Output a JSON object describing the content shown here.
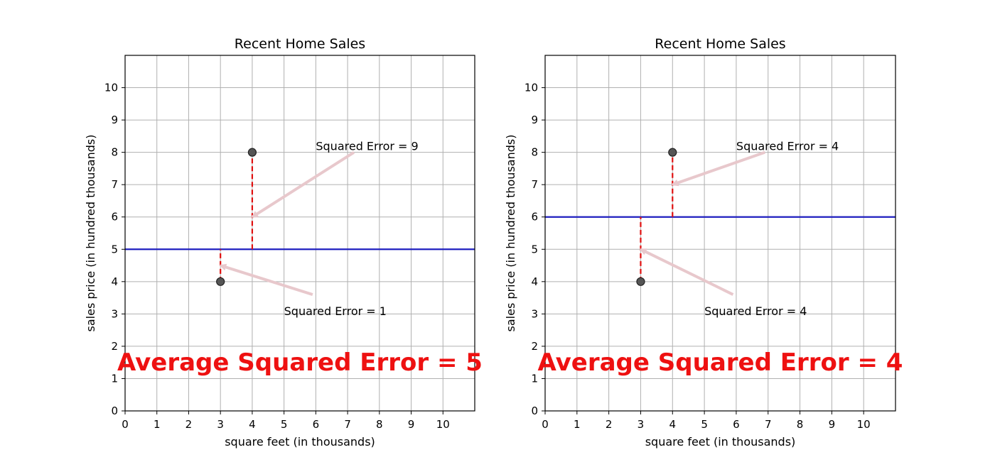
{
  "chart_data": [
    {
      "type": "scatter",
      "title": "Recent Home Sales",
      "xlabel": "square feet (in thousands)",
      "ylabel": "sales price (in hundred thousands)",
      "xlim": [
        0,
        11
      ],
      "ylim": [
        0,
        11
      ],
      "xticks": [
        0,
        1,
        2,
        3,
        4,
        5,
        6,
        7,
        8,
        9,
        10
      ],
      "yticks": [
        0,
        1,
        2,
        3,
        4,
        5,
        6,
        7,
        8,
        9,
        10
      ],
      "grid": true,
      "points": [
        {
          "x": 3,
          "y": 4
        },
        {
          "x": 4,
          "y": 8
        }
      ],
      "fit_line": {
        "y": 5,
        "color": "#1f1fbf"
      },
      "error_segments": [
        {
          "x": 3,
          "y1": 4,
          "y2": 5
        },
        {
          "x": 4,
          "y1": 5,
          "y2": 8
        }
      ],
      "annotations": [
        {
          "text": "Squared Error = 9",
          "target": {
            "x": 4,
            "y": 6
          },
          "anchor": {
            "x": 7.2,
            "y": 8.0
          },
          "label_at": {
            "x": 6,
            "y": 8.2
          }
        },
        {
          "text": "Squared Error = 1",
          "target": {
            "x": 3,
            "y": 4.5
          },
          "anchor": {
            "x": 5.9,
            "y": 3.6
          },
          "label_at": {
            "x": 5,
            "y": 3.1
          }
        }
      ],
      "headline": "Average Squared Error = 5"
    },
    {
      "type": "scatter",
      "title": "Recent Home Sales",
      "xlabel": "square feet (in thousands)",
      "ylabel": "sales price (in hundred thousands)",
      "xlim": [
        0,
        11
      ],
      "ylim": [
        0,
        11
      ],
      "xticks": [
        0,
        1,
        2,
        3,
        4,
        5,
        6,
        7,
        8,
        9,
        10
      ],
      "yticks": [
        0,
        1,
        2,
        3,
        4,
        5,
        6,
        7,
        8,
        9,
        10
      ],
      "grid": true,
      "points": [
        {
          "x": 3,
          "y": 4
        },
        {
          "x": 4,
          "y": 8
        }
      ],
      "fit_line": {
        "y": 6,
        "color": "#1f1fbf"
      },
      "error_segments": [
        {
          "x": 3,
          "y1": 4,
          "y2": 6
        },
        {
          "x": 4,
          "y1": 6,
          "y2": 8
        }
      ],
      "annotations": [
        {
          "text": "Squared Error = 4",
          "target": {
            "x": 4,
            "y": 7
          },
          "anchor": {
            "x": 6.9,
            "y": 8.0
          },
          "label_at": {
            "x": 6,
            "y": 8.2
          }
        },
        {
          "text": "Squared Error = 4",
          "target": {
            "x": 3,
            "y": 5
          },
          "anchor": {
            "x": 5.9,
            "y": 3.6
          },
          "label_at": {
            "x": 5,
            "y": 3.1
          }
        }
      ],
      "headline": "Average Squared Error = 4"
    }
  ],
  "colors": {
    "grid": "#b0b0b0",
    "fit_line": "#1f1fbf",
    "error_line": "#e01010",
    "point_fill": "#555555",
    "arrow": "#e8c8cc",
    "headline": "#ee1111"
  }
}
